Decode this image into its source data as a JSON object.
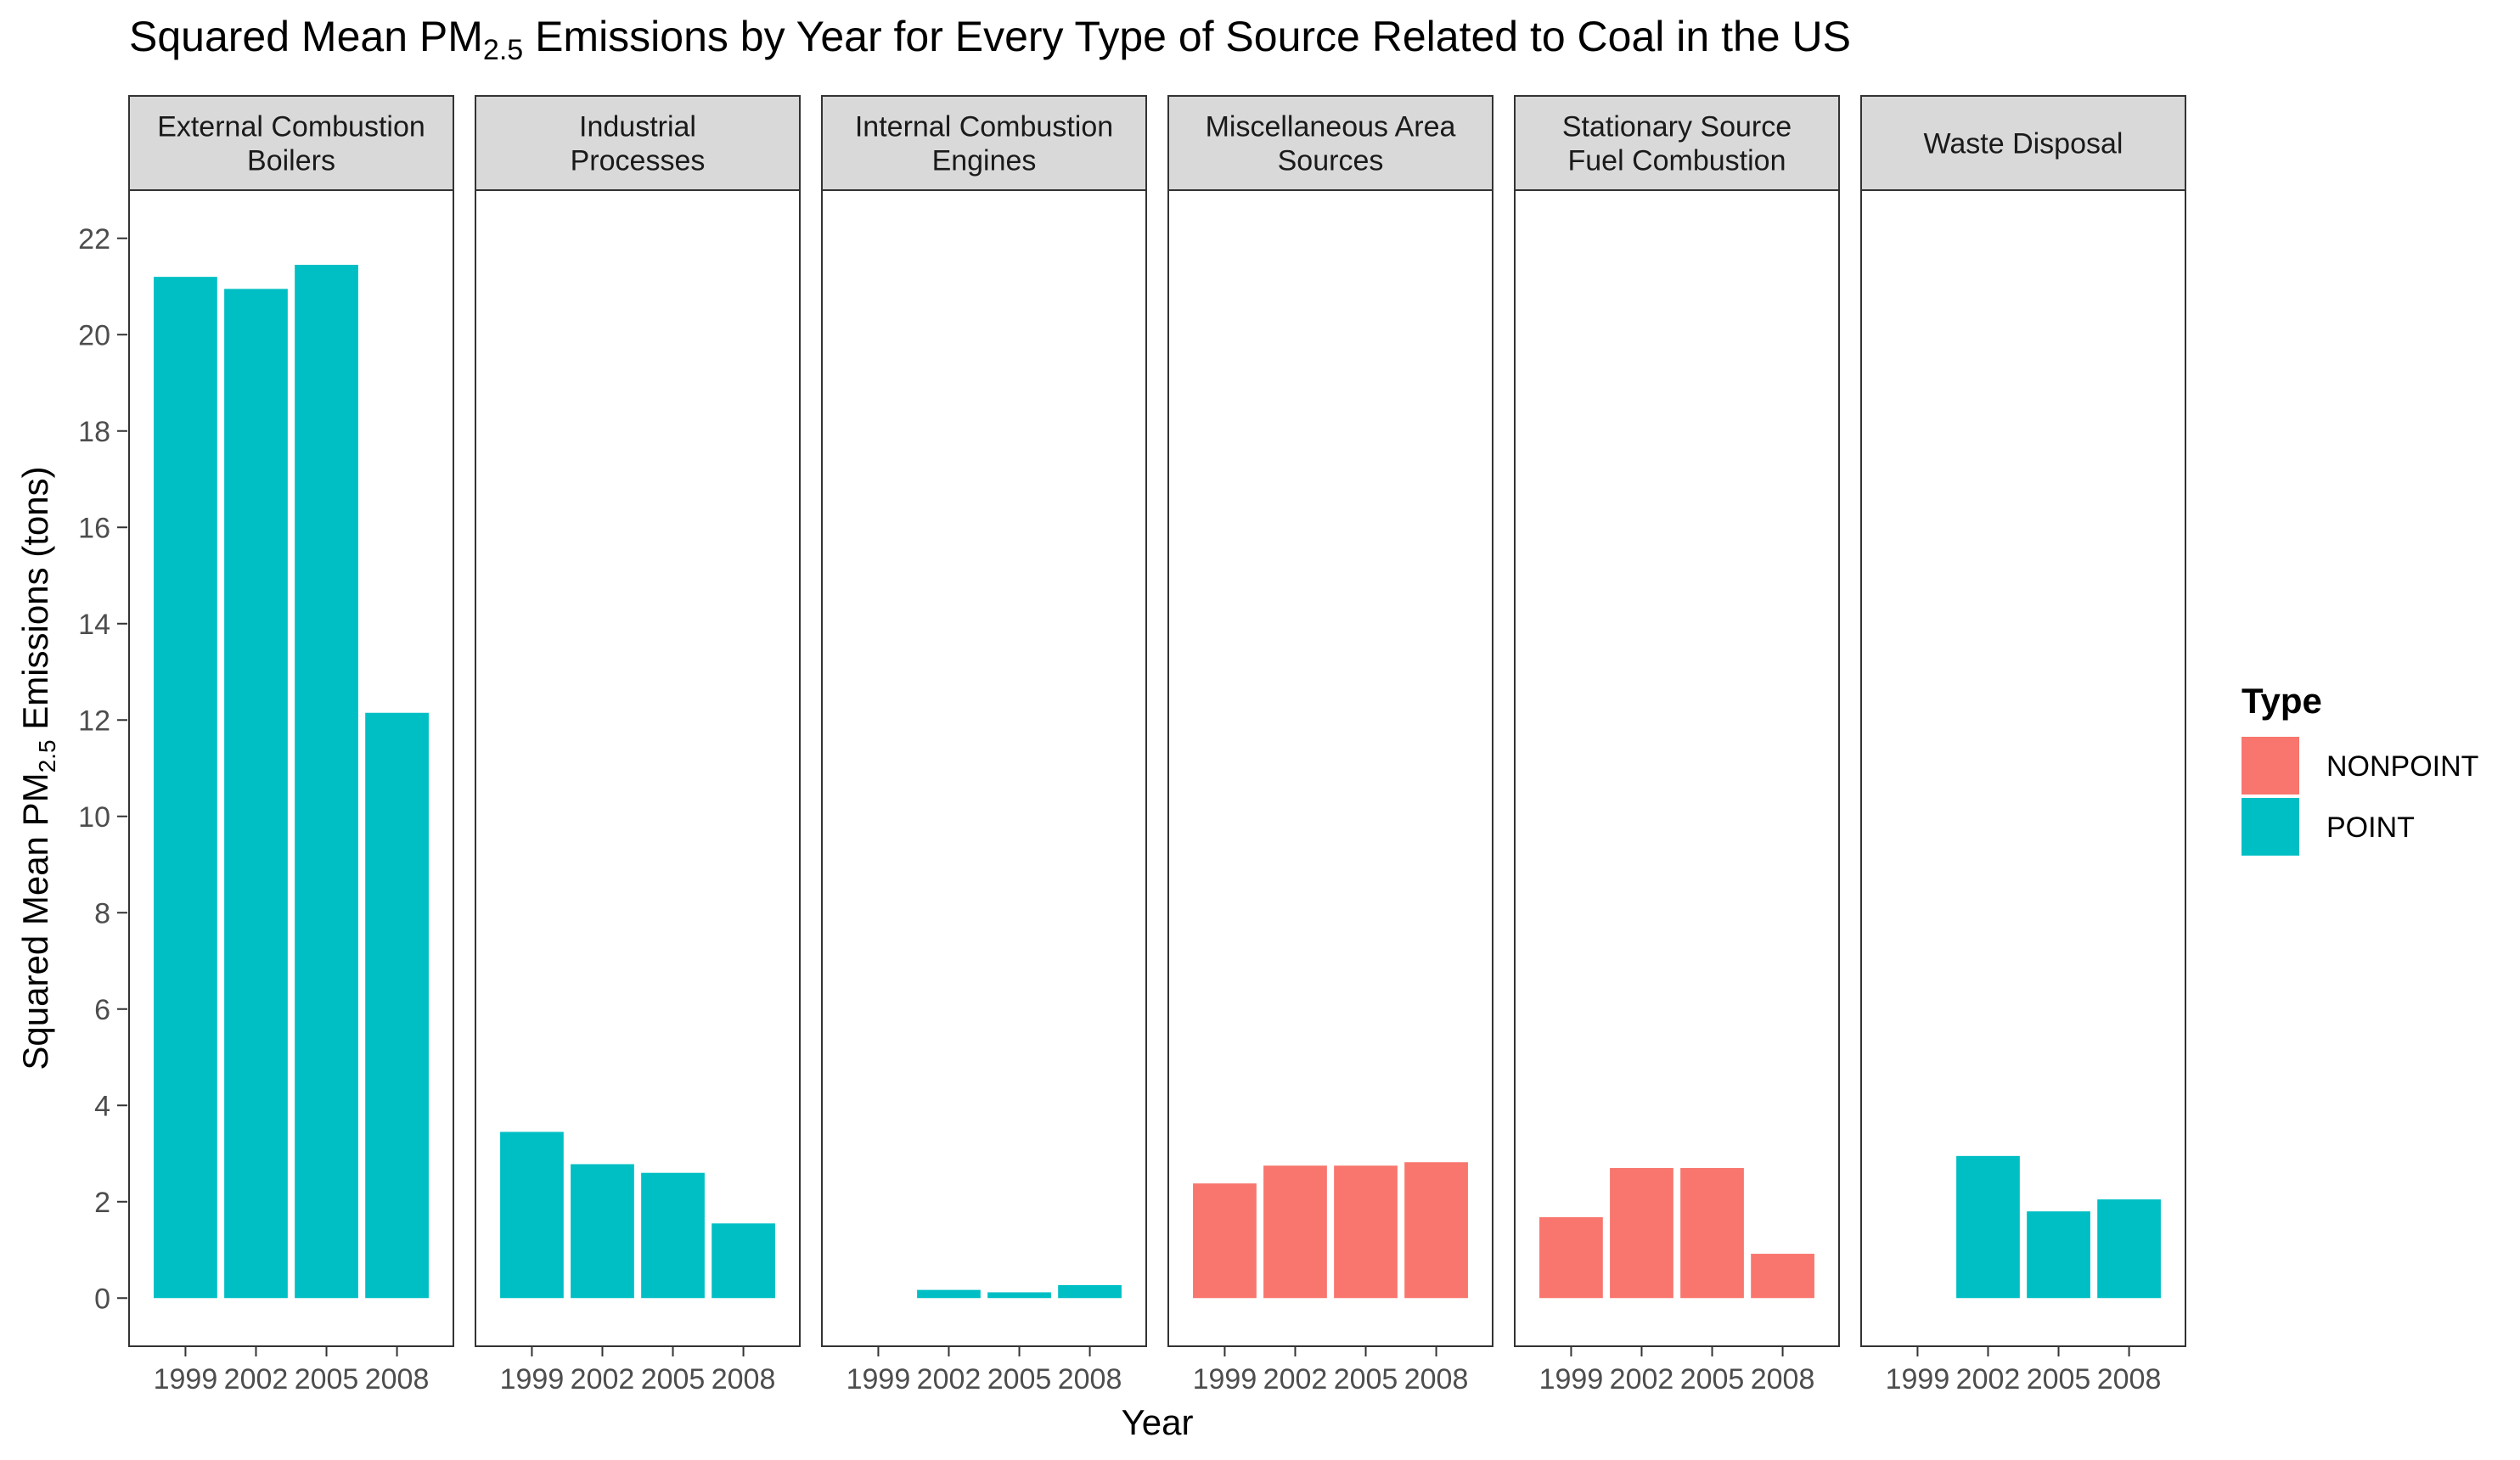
{
  "chart_data": {
    "type": "bar",
    "layout": "facet-wrap",
    "title": {
      "prefix": "Squared Mean PM",
      "subscript": "2.5",
      "suffix": " Emissions by Year for Every Type of Source Related to Coal in the US"
    },
    "xlabel": "Year",
    "ylabel": {
      "prefix": "Squared Mean PM",
      "subscript": "2.5",
      "suffix": " Emissions (tons)"
    },
    "ylim": [
      -1,
      23
    ],
    "yticks": [
      0,
      2,
      4,
      6,
      8,
      10,
      12,
      14,
      16,
      18,
      20,
      22
    ],
    "categories": [
      "1999",
      "2002",
      "2005",
      "2008"
    ],
    "legend": {
      "title": "Type",
      "position": "right",
      "entries": [
        {
          "label": "NONPOINT",
          "color": "#F8766D"
        },
        {
          "label": "POINT",
          "color": "#00BFC4"
        }
      ]
    },
    "facets": [
      {
        "label_lines": [
          "External Combustion",
          "Boilers"
        ],
        "type": "POINT",
        "values": [
          21.2,
          20.95,
          21.45,
          12.15
        ]
      },
      {
        "label_lines": [
          "Industrial",
          "Processes"
        ],
        "type": "POINT",
        "values": [
          3.45,
          2.78,
          2.6,
          1.55
        ]
      },
      {
        "label_lines": [
          "Internal Combustion",
          "Engines"
        ],
        "type": "POINT",
        "values": [
          null,
          0.17,
          0.12,
          0.27
        ]
      },
      {
        "label_lines": [
          "Miscellaneous Area",
          "Sources"
        ],
        "type": "NONPOINT",
        "values": [
          2.38,
          2.75,
          2.75,
          2.82
        ]
      },
      {
        "label_lines": [
          "Stationary Source",
          "Fuel Combustion"
        ],
        "type": "NONPOINT",
        "values": [
          1.68,
          2.7,
          2.7,
          0.92
        ]
      },
      {
        "label_lines": [
          "Waste Disposal"
        ],
        "type": "POINT",
        "values": [
          null,
          2.95,
          1.8,
          2.05
        ]
      }
    ]
  }
}
